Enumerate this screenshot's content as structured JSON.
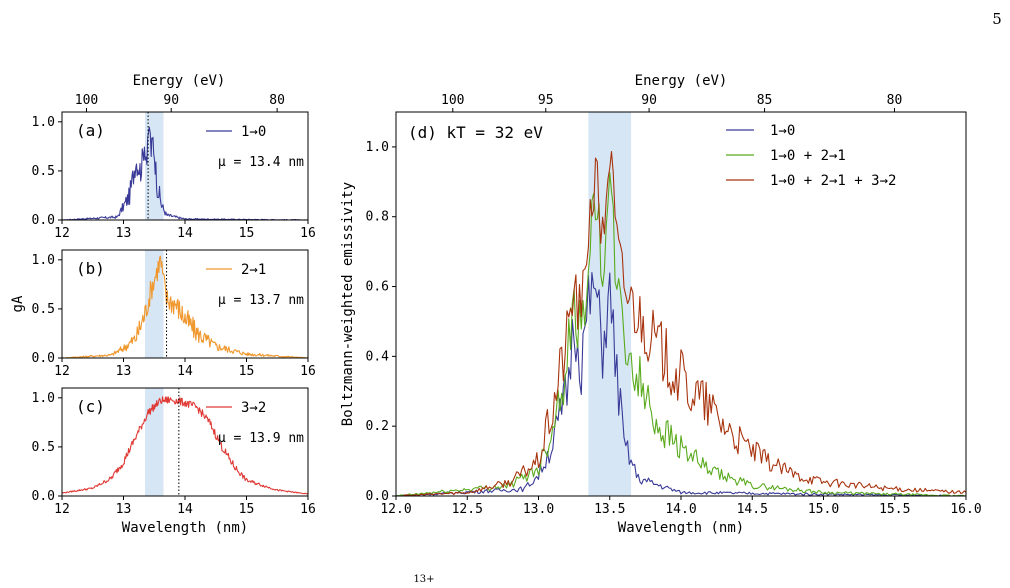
{
  "page_number": "5",
  "caption_fragment": "13+",
  "colors": {
    "blue": "#3a3a98",
    "orange": "#f0982e",
    "red": "#e03a36",
    "green": "#5aaa1e",
    "brown": "#a8340e",
    "shade": "#d6e6f4"
  },
  "chart_data": [
    {
      "type": "line",
      "panel": "(a)",
      "xlim": [
        12,
        16
      ],
      "ylim": [
        0,
        1.1
      ],
      "xticks": [
        "12",
        "13",
        "14",
        "15",
        "16"
      ],
      "yticks": [
        "0.0",
        "0.5",
        "1.0"
      ],
      "top_axis_label": "Energy (eV)",
      "top_ticks": [
        "100",
        "90",
        "80"
      ],
      "legend": "1→0",
      "mu_label": "μ = 13.4 nm",
      "mu_nm": 13.4,
      "shade_nm": [
        13.35,
        13.65
      ],
      "series": [
        {
          "name": "1→0",
          "color": "#3a3a98",
          "x": [
            12.0,
            12.9,
            13.1,
            13.2,
            13.28,
            13.34,
            13.38,
            13.42,
            13.45,
            13.48,
            13.55,
            13.62,
            13.7,
            14.0,
            16.0
          ],
          "y": [
            0.0,
            0.03,
            0.25,
            0.6,
            0.5,
            0.78,
            0.6,
            0.97,
            0.7,
            0.82,
            0.35,
            0.15,
            0.05,
            0.01,
            0.0
          ]
        }
      ]
    },
    {
      "type": "line",
      "panel": "(b)",
      "xlim": [
        12,
        16
      ],
      "ylim": [
        0,
        1.1
      ],
      "xticks": [
        "12",
        "13",
        "14",
        "15",
        "16"
      ],
      "yticks": [
        "0.0",
        "0.5",
        "1.0"
      ],
      "ylabel": "gA",
      "legend": "2→1",
      "mu_label": "μ = 13.7 nm",
      "mu_nm": 13.7,
      "shade_nm": [
        13.35,
        13.65
      ],
      "series": [
        {
          "name": "2→1",
          "color": "#f0982e",
          "x": [
            12.0,
            12.8,
            13.0,
            13.2,
            13.35,
            13.45,
            13.55,
            13.6,
            13.7,
            13.85,
            14.0,
            14.2,
            14.5,
            15.0,
            16.0
          ],
          "y": [
            0.0,
            0.03,
            0.1,
            0.2,
            0.45,
            0.7,
            0.9,
            1.0,
            0.6,
            0.55,
            0.4,
            0.25,
            0.12,
            0.04,
            0.0
          ]
        }
      ]
    },
    {
      "type": "line",
      "panel": "(c)",
      "xlim": [
        12,
        16
      ],
      "ylim": [
        0,
        1.1
      ],
      "xticks": [
        "12",
        "13",
        "14",
        "15",
        "16"
      ],
      "yticks": [
        "0.0",
        "0.5",
        "1.0"
      ],
      "xlabel": "Wavelength (nm)",
      "legend": "3→2",
      "mu_label": "μ = 13.9 nm",
      "mu_nm": 13.9,
      "shade_nm": [
        13.35,
        13.65
      ],
      "series": [
        {
          "name": "3→2",
          "color": "#e03a36",
          "x": [
            12.0,
            12.5,
            12.8,
            13.0,
            13.2,
            13.4,
            13.6,
            13.8,
            14.0,
            14.2,
            14.4,
            14.6,
            14.8,
            15.0,
            15.5,
            16.0
          ],
          "y": [
            0.03,
            0.08,
            0.18,
            0.35,
            0.6,
            0.85,
            0.97,
            0.98,
            0.95,
            0.9,
            0.75,
            0.5,
            0.3,
            0.16,
            0.06,
            0.02
          ]
        }
      ]
    },
    {
      "type": "line",
      "panel": "(d) kT = 32 eV",
      "xlim": [
        12,
        16
      ],
      "ylim": [
        0,
        1.1
      ],
      "xticks": [
        "12.0",
        "12.5",
        "13.0",
        "13.5",
        "14.0",
        "14.5",
        "15.0",
        "15.5",
        "16.0"
      ],
      "yticks": [
        "0.0",
        "0.2",
        "0.4",
        "0.6",
        "0.8",
        "1.0"
      ],
      "xlabel": "Wavelength (nm)",
      "ylabel": "Boltzmann-weighted emissivity",
      "top_axis_label": "Energy (eV)",
      "top_ticks": [
        "100",
        "95",
        "90",
        "85",
        "80"
      ],
      "shade_nm": [
        13.35,
        13.65
      ],
      "series": [
        {
          "name": "1→0",
          "color": "#3a3a98",
          "x": [
            12.0,
            12.9,
            13.0,
            13.1,
            13.2,
            13.25,
            13.3,
            13.35,
            13.4,
            13.45,
            13.5,
            13.55,
            13.6,
            13.7,
            14.0,
            16.0
          ],
          "y": [
            0.0,
            0.02,
            0.06,
            0.15,
            0.3,
            0.5,
            0.38,
            0.55,
            0.6,
            0.42,
            0.58,
            0.35,
            0.15,
            0.05,
            0.01,
            0.0
          ]
        },
        {
          "name": "1→0 + 2→1",
          "color": "#5aaa1e",
          "x": [
            12.0,
            12.8,
            13.0,
            13.1,
            13.2,
            13.25,
            13.3,
            13.35,
            13.4,
            13.45,
            13.5,
            13.55,
            13.6,
            13.7,
            13.85,
            14.0,
            14.2,
            14.5,
            15.0,
            16.0
          ],
          "y": [
            0.0,
            0.03,
            0.08,
            0.2,
            0.4,
            0.55,
            0.45,
            0.7,
            0.85,
            0.65,
            0.88,
            0.6,
            0.45,
            0.33,
            0.2,
            0.14,
            0.07,
            0.03,
            0.01,
            0.0
          ]
        },
        {
          "name": "1→0 + 2→1 + 3→2",
          "color": "#a8340e",
          "x": [
            12.0,
            12.5,
            12.8,
            13.0,
            13.1,
            13.2,
            13.25,
            13.3,
            13.35,
            13.4,
            13.45,
            13.5,
            13.55,
            13.6,
            13.7,
            13.85,
            14.0,
            14.2,
            14.4,
            14.6,
            14.8,
            15.0,
            15.5,
            16.0
          ],
          "y": [
            0.0,
            0.01,
            0.04,
            0.1,
            0.25,
            0.45,
            0.6,
            0.5,
            0.78,
            0.92,
            0.73,
            1.0,
            0.72,
            0.6,
            0.52,
            0.42,
            0.33,
            0.25,
            0.16,
            0.1,
            0.06,
            0.04,
            0.02,
            0.01
          ]
        }
      ]
    }
  ]
}
